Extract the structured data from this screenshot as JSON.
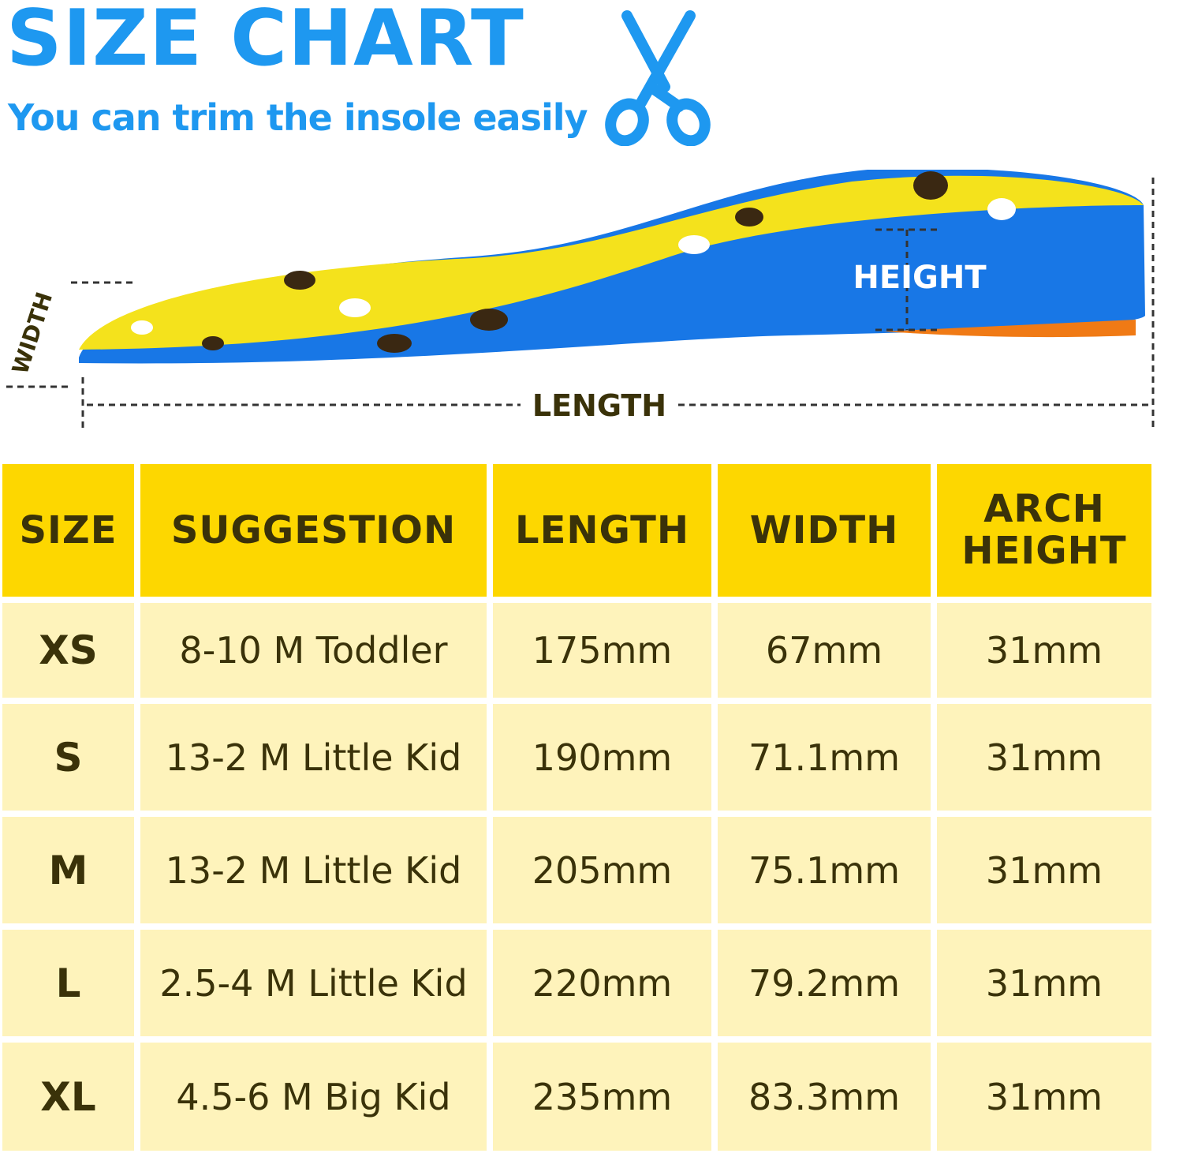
{
  "header": {
    "title": "SIZE CHART",
    "subtitle": "You can trim the insole easily",
    "icon": "scissors-icon",
    "accent_color": "#1e98f0"
  },
  "diagram": {
    "width_label": "WIDTH",
    "height_label": "HEIGHT",
    "length_label": "LENGTH"
  },
  "table": {
    "header_color": "#fdd700",
    "row_color": "#fef3bb",
    "columns": [
      "SIZE",
      "SUGGESTION",
      "LENGTH",
      "WIDTH",
      "ARCH HEIGHT"
    ],
    "rows": [
      {
        "size": "XS",
        "suggestion": "8-10 M Toddler",
        "length": "175mm",
        "width": "67mm",
        "arch_height": "31mm"
      },
      {
        "size": "S",
        "suggestion": "13-2 M Little Kid",
        "length": "190mm",
        "width": "71.1mm",
        "arch_height": "31mm"
      },
      {
        "size": "M",
        "suggestion": "13-2 M Little Kid",
        "length": "205mm",
        "width": "75.1mm",
        "arch_height": "31mm"
      },
      {
        "size": "L",
        "suggestion": "2.5-4 M Little Kid",
        "length": "220mm",
        "width": "79.2mm",
        "arch_height": "31mm"
      },
      {
        "size": "XL",
        "suggestion": "4.5-6 M Big Kid",
        "length": "235mm",
        "width": "83.3mm",
        "arch_height": "31mm"
      }
    ]
  }
}
